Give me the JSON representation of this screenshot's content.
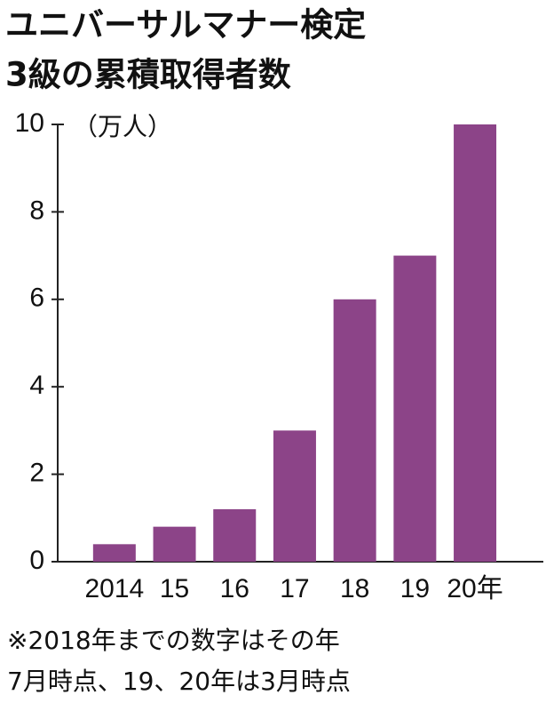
{
  "chart_data": {
    "type": "bar",
    "title": [
      "ユニバーサルマナー検定",
      "3級の累積取得者数"
    ],
    "y_label": "（万人）",
    "categories": [
      "2014",
      "15",
      "16",
      "17",
      "18",
      "19",
      "20年"
    ],
    "values": [
      0.4,
      0.8,
      1.2,
      3,
      6,
      7,
      10
    ],
    "color": "#8c4488",
    "ylim": [
      0,
      10
    ],
    "yticks": [
      0,
      2,
      4,
      6,
      8,
      10
    ],
    "note": [
      "※2018年までの数字はその年",
      "7月時点、19、20年は3月時点"
    ]
  }
}
